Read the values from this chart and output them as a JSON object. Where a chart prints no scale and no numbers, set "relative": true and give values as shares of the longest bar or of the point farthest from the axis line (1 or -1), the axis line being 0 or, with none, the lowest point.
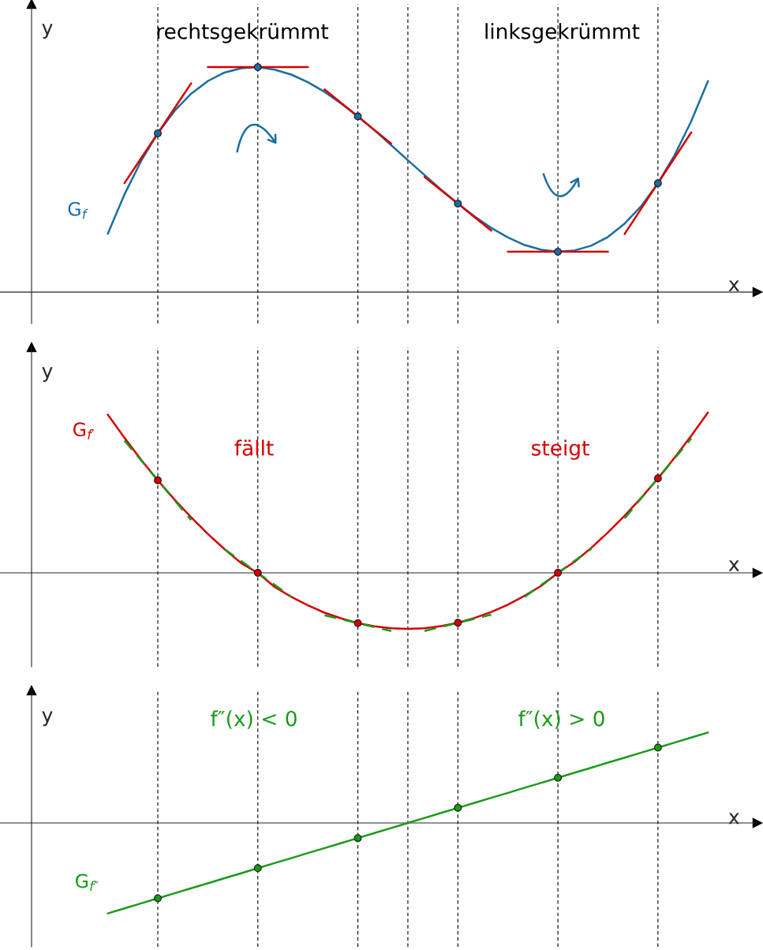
{
  "chart_data": [
    {
      "type": "line",
      "relative": true,
      "xlabel": "x",
      "ylabel": "y",
      "grid": "x",
      "categories": [
        null,
        null,
        null,
        null,
        null,
        null,
        null,
        null,
        null,
        null,
        null,
        null,
        null,
        null,
        null,
        null,
        null,
        null,
        null,
        null,
        null,
        null,
        null,
        null,
        null,
        null,
        null,
        null,
        null,
        null,
        null,
        null,
        null,
        null,
        null,
        null,
        null
      ],
      "annotations": [
        "rechtsgekrümmt",
        "linksgekrümmt"
      ],
      "series": [
        {
          "name": "G$_{f}$",
          "color": "#1a6e9e",
          "values": [
            0.259,
            0.434,
            0.583,
            0.706,
            0.805,
            0.882,
            0.938,
            0.976,
            0.995,
            1.0,
            0.989,
            0.967,
            0.933,
            0.89,
            0.838,
            0.781,
            0.719,
            0.653,
            0.586,
            0.52,
            0.455,
            0.393,
            0.336,
            0.285,
            0.243,
            0.209,
            0.188,
            0.179,
            0.185,
            0.206,
            0.245,
            0.304,
            0.382,
            0.484,
            0.609,
            0.76,
            0.938
          ]
        },
        {
          "color": "#d40000",
          "values": [
            null,
            0.484,
            0.595,
            0.706,
            0.817,
            0.928,
            null,
            null,
            null,
            null,
            null,
            null,
            null,
            null,
            null,
            null,
            null,
            null,
            null,
            null,
            null,
            null,
            null,
            null,
            null,
            null,
            null,
            null,
            null,
            null,
            null,
            null,
            null,
            null,
            null,
            null,
            null
          ]
        },
        {
          "color": "#d40000",
          "values": [
            null,
            null,
            null,
            null,
            null,
            null,
            1.0,
            1.0,
            1.0,
            1.0,
            1.0,
            1.0,
            1.0,
            null,
            null,
            null,
            null,
            null,
            null,
            null,
            null,
            null,
            null,
            null,
            null,
            null,
            null,
            null,
            null,
            null,
            null,
            null,
            null,
            null,
            null,
            null,
            null
          ]
        },
        {
          "color": "#d40000",
          "values": [
            null,
            null,
            null,
            null,
            null,
            null,
            null,
            null,
            null,
            null,
            null,
            null,
            null,
            0.901,
            0.841,
            0.781,
            0.72,
            0.66,
            null,
            null,
            null,
            null,
            null,
            null,
            null,
            null,
            null,
            null,
            null,
            null,
            null,
            null,
            null,
            null,
            null,
            null,
            null
          ]
        },
        {
          "color": "#d40000",
          "values": [
            null,
            null,
            null,
            null,
            null,
            null,
            null,
            null,
            null,
            null,
            null,
            null,
            null,
            null,
            null,
            null,
            null,
            null,
            null,
            0.512,
            0.452,
            0.393,
            0.333,
            0.273,
            null,
            null,
            null,
            null,
            null,
            null,
            null,
            null,
            null,
            null,
            null,
            null,
            null
          ]
        },
        {
          "color": "#d40000",
          "values": [
            null,
            null,
            null,
            null,
            null,
            null,
            null,
            null,
            null,
            null,
            null,
            null,
            null,
            null,
            null,
            null,
            null,
            null,
            null,
            null,
            null,
            null,
            null,
            null,
            0.179,
            0.179,
            0.179,
            0.179,
            0.179,
            0.179,
            0.179,
            null,
            null,
            null,
            null,
            null,
            null
          ]
        },
        {
          "color": "#d40000",
          "values": [
            null,
            null,
            null,
            null,
            null,
            null,
            null,
            null,
            null,
            null,
            null,
            null,
            null,
            null,
            null,
            null,
            null,
            null,
            null,
            null,
            null,
            null,
            null,
            null,
            null,
            null,
            null,
            null,
            null,
            null,
            null,
            0.258,
            0.371,
            0.484,
            0.597,
            0.71,
            null
          ]
        }
      ]
    },
    {
      "type": "line",
      "relative": true,
      "xlabel": "x",
      "ylabel": "y",
      "grid": "x",
      "categories": [
        null,
        null,
        null,
        null,
        null,
        null,
        null,
        null,
        null,
        null,
        null,
        null,
        null,
        null,
        null,
        null,
        null,
        null,
        null,
        null,
        null,
        null,
        null,
        null,
        null,
        null,
        null,
        null,
        null,
        null,
        null,
        null,
        null,
        null,
        null,
        null,
        null
      ],
      "annotations": [
        "fällt",
        "steigt"
      ],
      "series": [
        {
          "name": "G$_{f′}$",
          "color": "#d40000",
          "values": [
            0.986,
            0.842,
            0.705,
            0.577,
            0.457,
            0.346,
            0.243,
            0.148,
            0.061,
            0,
            -0.087,
            -0.149,
            -0.202,
            -0.248,
            -0.284,
            -0.313,
            -0.333,
            -0.345,
            -0.349,
            -0.345,
            -0.332,
            -0.311,
            -0.281,
            -0.244,
            -0.198,
            -0.143,
            -0.081,
            0,
            0.069,
            0.156,
            0.252,
            0.356,
            0.468,
            0.589,
            0.718,
            0.855,
            1.0
          ]
        },
        {
          "color": "#1a9a1a",
          "line_style": "dashed",
          "values": [
            null,
            0.825,
            0.701,
            0.577,
            0.453,
            0.329,
            null,
            null,
            null,
            null,
            null,
            null,
            null,
            null,
            null,
            null,
            null,
            null,
            null,
            null,
            null,
            null,
            null,
            null,
            null,
            null,
            null,
            null,
            null,
            null,
            null,
            null,
            null,
            null,
            null,
            null,
            null
          ]
        },
        {
          "color": "#1a9a1a",
          "line_style": "dashed",
          "values": [
            null,
            null,
            null,
            null,
            null,
            null,
            null,
            0.148,
            0.074,
            0,
            -0.074,
            -0.148,
            null,
            null,
            null,
            null,
            null,
            null,
            null,
            null,
            null,
            null,
            null,
            null,
            null,
            null,
            null,
            null,
            null,
            null,
            null,
            null,
            null,
            null,
            null,
            null,
            null
          ]
        },
        {
          "color": "#1a9a1a",
          "line_style": "dashed",
          "values": [
            null,
            null,
            null,
            null,
            null,
            null,
            null,
            null,
            null,
            null,
            null,
            null,
            null,
            -0.264,
            -0.289,
            -0.313,
            -0.338,
            -0.362,
            null,
            null,
            null,
            null,
            null,
            null,
            null,
            null,
            null,
            null,
            null,
            null,
            null,
            null,
            null,
            null,
            null,
            null,
            null
          ]
        },
        {
          "color": "#1a9a1a",
          "line_style": "dashed",
          "values": [
            null,
            null,
            null,
            null,
            null,
            null,
            null,
            null,
            null,
            null,
            null,
            null,
            null,
            null,
            null,
            null,
            null,
            null,
            null,
            -0.362,
            -0.337,
            -0.311,
            -0.286,
            -0.26,
            null,
            null,
            null,
            null,
            null,
            null,
            null,
            null,
            null,
            null,
            null,
            null,
            null
          ]
        },
        {
          "color": "#1a9a1a",
          "line_style": "dashed",
          "values": [
            null,
            null,
            null,
            null,
            null,
            null,
            null,
            null,
            null,
            null,
            null,
            null,
            null,
            null,
            null,
            null,
            null,
            null,
            null,
            null,
            null,
            null,
            null,
            null,
            null,
            -0.15,
            -0.075,
            0,
            0.075,
            0.15,
            null,
            null,
            null,
            null,
            null,
            null,
            null
          ]
        },
        {
          "color": "#1a9a1a",
          "line_style": "dashed",
          "values": [
            null,
            null,
            null,
            null,
            null,
            null,
            null,
            null,
            null,
            null,
            null,
            null,
            null,
            null,
            null,
            null,
            null,
            null,
            null,
            null,
            null,
            null,
            null,
            null,
            null,
            null,
            null,
            null,
            null,
            null,
            null,
            0.34,
            0.465,
            0.589,
            0.714,
            0.838,
            null
          ]
        }
      ]
    },
    {
      "type": "line",
      "relative": true,
      "xlabel": "x",
      "ylabel": "y",
      "grid": "x",
      "categories": [
        null,
        null,
        null,
        null,
        null,
        null,
        null,
        null,
        null,
        null,
        null,
        null,
        null,
        null,
        null,
        null,
        null,
        null,
        null,
        null,
        null,
        null,
        null,
        null,
        null,
        null,
        null,
        null,
        null,
        null,
        null,
        null,
        null,
        null,
        null,
        null,
        null
      ],
      "annotations": [
        "f″(x) < 0",
        "f″(x) > 0"
      ],
      "series": [
        {
          "name": "G$_{f″}$",
          "color": "#1a9a1a",
          "values": [
            -1.0,
            -0.944,
            -0.889,
            -0.833,
            -0.778,
            -0.722,
            -0.667,
            -0.611,
            -0.556,
            -0.5,
            -0.444,
            -0.389,
            -0.333,
            -0.278,
            -0.222,
            -0.167,
            -0.111,
            -0.056,
            0,
            0.056,
            0.111,
            0.167,
            0.222,
            0.278,
            0.333,
            0.389,
            0.444,
            0.5,
            0.556,
            0.611,
            0.667,
            0.722,
            0.778,
            0.833,
            0.889,
            0.944,
            1.0
          ]
        }
      ]
    }
  ]
}
